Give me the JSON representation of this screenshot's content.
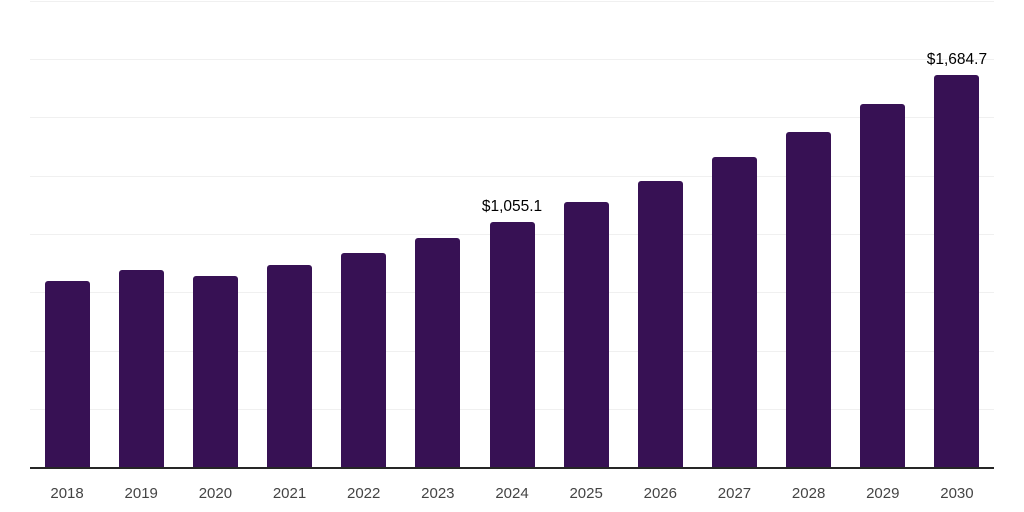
{
  "chart_data": {
    "type": "bar",
    "title": "",
    "xlabel": "",
    "ylabel": "",
    "categories": [
      "2018",
      "2019",
      "2020",
      "2021",
      "2022",
      "2023",
      "2024",
      "2025",
      "2026",
      "2027",
      "2028",
      "2029",
      "2030"
    ],
    "values": [
      802,
      850,
      822,
      869,
      920,
      985,
      1055.1,
      1140,
      1230,
      1330,
      1441,
      1557,
      1684.7
    ],
    "data_labels": [
      {
        "category": "2024",
        "text": "$1,055.1"
      },
      {
        "category": "2030",
        "text": "$1,684.7"
      }
    ],
    "ylim": [
      0,
      2000
    ],
    "gridline_step": 250,
    "grid": true,
    "legend_position": "none",
    "y_tick_labels_visible": false,
    "bar_color": "#371154",
    "gridline_color": "#f0f0f0",
    "axis_line_color": "#262626",
    "x_label_color": "#444444",
    "value_label_color": "#000000",
    "background_color": "#ffffff"
  }
}
